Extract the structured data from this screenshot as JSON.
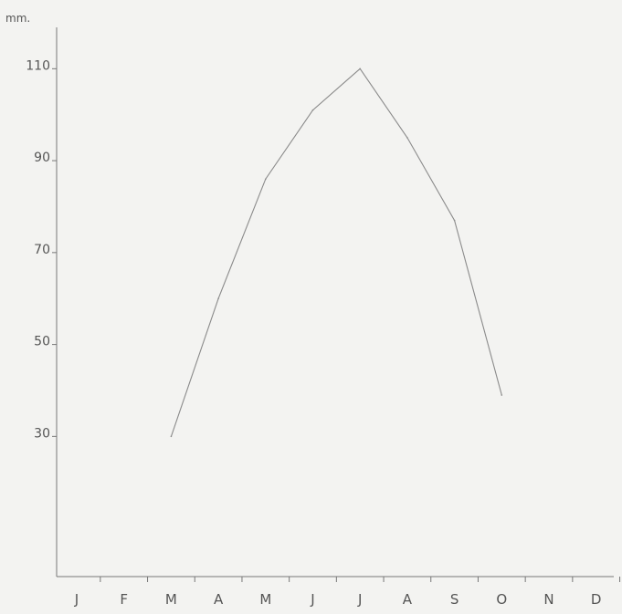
{
  "chart_data": {
    "type": "line",
    "title": "",
    "xlabel": "",
    "ylabel": "mm.",
    "categories": [
      "J",
      "F",
      "M",
      "A",
      "M",
      "J",
      "J",
      "A",
      "S",
      "O",
      "N",
      "D"
    ],
    "y_tick_labels": [
      "110",
      "90",
      "70",
      "50",
      "30"
    ],
    "y_ticks": [
      110,
      90,
      70,
      50,
      30
    ],
    "ylim": [
      -0.5,
      119
    ],
    "grid": false,
    "series": [
      {
        "values": [
          null,
          null,
          30,
          60,
          86,
          101,
          110,
          95,
          77,
          39,
          null,
          null
        ]
      }
    ],
    "colors": {
      "line": "#8a8a8a",
      "axis": "#777777",
      "text": "#555555"
    }
  }
}
